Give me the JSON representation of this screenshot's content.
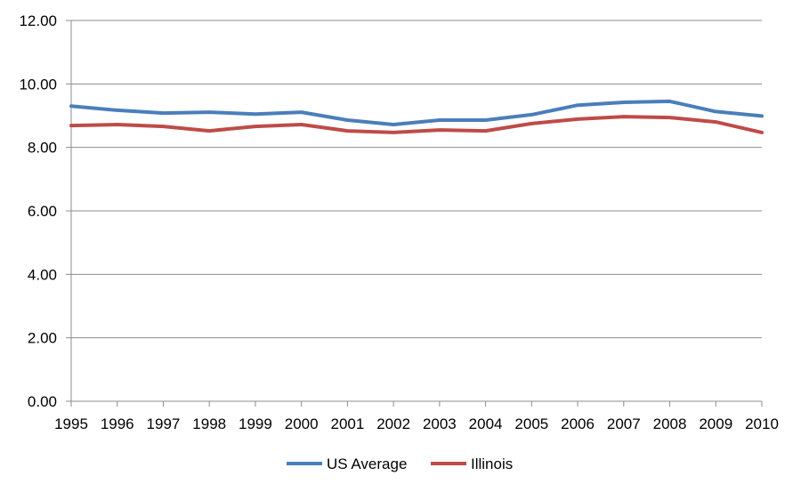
{
  "chart_data": {
    "type": "line",
    "title": "",
    "xlabel": "",
    "ylabel": "",
    "x": [
      "1995",
      "1996",
      "1997",
      "1998",
      "1999",
      "2000",
      "2001",
      "2002",
      "2003",
      "2004",
      "2005",
      "2006",
      "2007",
      "2008",
      "2009",
      "2010"
    ],
    "ylim": [
      0,
      12
    ],
    "yticks": [
      "0.00",
      "2.00",
      "4.00",
      "6.00",
      "8.00",
      "10.00",
      "12.00"
    ],
    "grid": true,
    "legend_position": "bottom",
    "series": [
      {
        "name": "US Average",
        "color": "#4a7ebb",
        "values": [
          9.3,
          9.17,
          9.08,
          9.11,
          9.05,
          9.11,
          8.86,
          8.72,
          8.86,
          8.86,
          9.03,
          9.33,
          9.42,
          9.45,
          9.13,
          8.99
        ]
      },
      {
        "name": "Illinois",
        "color": "#be4b48",
        "values": [
          8.69,
          8.72,
          8.66,
          8.52,
          8.66,
          8.72,
          8.52,
          8.47,
          8.55,
          8.52,
          8.75,
          8.89,
          8.97,
          8.94,
          8.8,
          8.47
        ]
      }
    ]
  }
}
